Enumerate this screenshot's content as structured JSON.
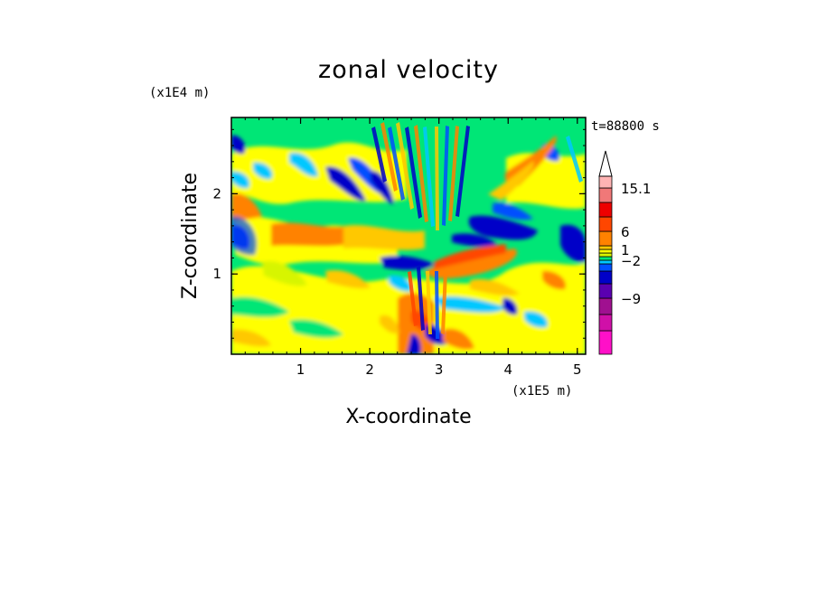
{
  "chart_data": {
    "type": "heatmap",
    "title": "zonal velocity",
    "xlabel": "X-coordinate",
    "ylabel": "Z-coordinate",
    "x_scale_label": "(x1E5 m)",
    "y_scale_label": "(x1E4 m)",
    "time_label": "t=88800 s",
    "xlim": [
      0,
      5.12
    ],
    "ylim": [
      0,
      2.95
    ],
    "x_ticks": [
      1,
      2,
      3,
      4,
      5
    ],
    "y_ticks": [
      1,
      2
    ],
    "x_tick_labels": [
      "1",
      "2",
      "3",
      "4",
      "5"
    ],
    "y_tick_labels": [
      "1",
      "2"
    ],
    "colorbar": {
      "levels": [
        {
          "color": "#ff10c8"
        },
        {
          "color": "#d010a8"
        },
        {
          "color": "#a01090"
        },
        {
          "color": "#5a00b0"
        },
        {
          "color": "#0000c8"
        },
        {
          "color": "#0050ff"
        },
        {
          "color": "#00c8ff"
        },
        {
          "color": "#00e676"
        },
        {
          "color": "#d7f500"
        },
        {
          "color": "#ffff00"
        },
        {
          "color": "#ffc800"
        },
        {
          "color": "#ff8200"
        },
        {
          "color": "#ff4600"
        },
        {
          "color": "#ee0000"
        },
        {
          "color": "#f07878"
        },
        {
          "color": "#ffb4b4"
        }
      ],
      "labels": [
        "15.1",
        "6",
        "1",
        "−2",
        "−9"
      ],
      "label_values": [
        15.1,
        6,
        1,
        -2,
        -9
      ]
    }
  }
}
